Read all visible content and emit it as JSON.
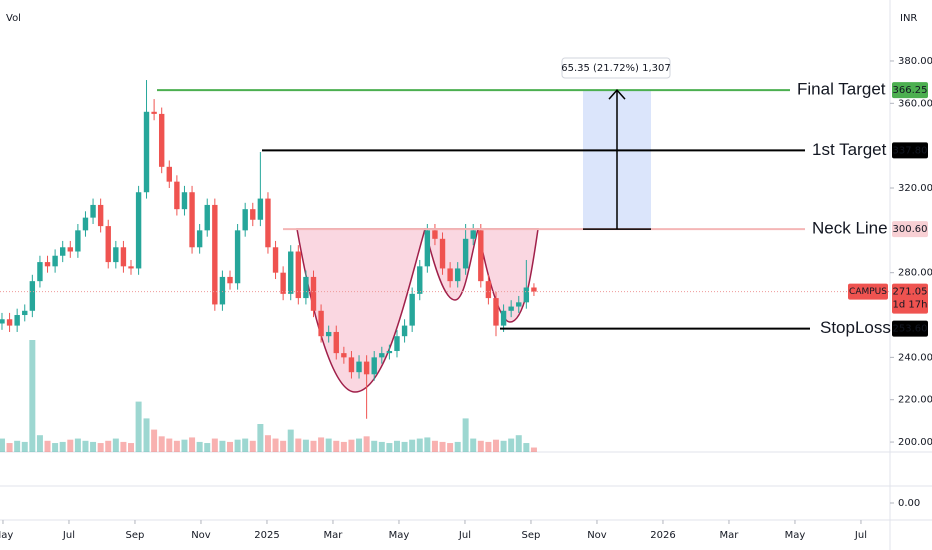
{
  "header": {
    "left": "Vol",
    "right": "INR"
  },
  "chart_data": {
    "type": "candlestick",
    "x": [
      3.97,
      4.2,
      4.43,
      4.66,
      4.89,
      5.12,
      5.35,
      5.58,
      5.81,
      6.04,
      6.27,
      6.5,
      6.73,
      6.96,
      7.19,
      7.42,
      7.65,
      7.88,
      8.11,
      8.35,
      8.58,
      8.81,
      9.04,
      9.27,
      9.5,
      9.73,
      9.96,
      10.19,
      10.42,
      10.65,
      10.88,
      11.11,
      11.34,
      11.57,
      11.8,
      12.03,
      12.26,
      12.49,
      12.72,
      12.95,
      13.18,
      13.41,
      13.64,
      13.87,
      14.1,
      14.33,
      14.56,
      14.79,
      15.02,
      15.25,
      15.48,
      15.71,
      15.94,
      16.17,
      16.4,
      16.63,
      16.86,
      17.09,
      17.32,
      17.55,
      17.78,
      18.02,
      18.25,
      18.48,
      18.71,
      18.94,
      19.17,
      19.4,
      19.63,
      19.86,
      20.09
    ],
    "open": [
      256,
      258,
      255,
      260,
      262,
      276,
      285,
      283,
      288,
      292,
      290,
      300,
      306,
      312,
      302,
      285,
      292,
      283,
      282,
      318,
      356,
      355,
      330,
      323,
      310,
      318,
      292,
      300,
      312,
      265,
      278,
      275,
      300,
      310,
      305,
      315,
      292,
      280,
      270,
      290,
      268,
      278,
      262,
      250,
      252,
      242,
      240,
      233,
      238,
      232,
      240,
      242,
      243,
      250,
      255,
      270,
      283,
      300,
      296,
      282,
      276,
      282,
      296,
      300,
      276,
      268,
      255,
      262,
      264,
      266,
      273
    ],
    "high": [
      261,
      261,
      263,
      265,
      279,
      288,
      288,
      291,
      295,
      295,
      303,
      309,
      315,
      315,
      305,
      295,
      295,
      286,
      321,
      371,
      362,
      358,
      333,
      326,
      321,
      321,
      303,
      315,
      315,
      281,
      281,
      303,
      313,
      313,
      337,
      318,
      295,
      283,
      293,
      293,
      281,
      281,
      265,
      255,
      255,
      245,
      243,
      241,
      241,
      243,
      245,
      246,
      253,
      258,
      273,
      286,
      303,
      303,
      299,
      285,
      285,
      303,
      303,
      303,
      279,
      271,
      265,
      267,
      269,
      286,
      275
    ],
    "low": [
      253,
      252,
      252,
      257,
      259,
      273,
      280,
      280,
      285,
      287,
      287,
      297,
      303,
      299,
      282,
      282,
      280,
      279,
      279,
      315,
      352,
      327,
      320,
      307,
      307,
      289,
      289,
      297,
      262,
      262,
      272,
      272,
      297,
      302,
      302,
      289,
      277,
      267,
      267,
      265,
      265,
      259,
      247,
      247,
      239,
      237,
      230,
      230,
      211,
      229,
      237,
      239,
      240,
      247,
      252,
      267,
      280,
      293,
      279,
      273,
      273,
      279,
      293,
      273,
      265,
      250,
      252,
      259,
      261,
      263,
      269
    ],
    "close": [
      258,
      255,
      260,
      262,
      276,
      285,
      283,
      288,
      292,
      290,
      300,
      306,
      312,
      302,
      285,
      292,
      283,
      282,
      318,
      356,
      355,
      330,
      323,
      310,
      318,
      292,
      300,
      312,
      265,
      278,
      275,
      300,
      310,
      305,
      315,
      292,
      280,
      270,
      290,
      268,
      278,
      262,
      250,
      252,
      242,
      240,
      233,
      238,
      232,
      240,
      242,
      243,
      250,
      255,
      270,
      283,
      300,
      296,
      282,
      276,
      282,
      296,
      300,
      276,
      268,
      255,
      262,
      264,
      266,
      273,
      271.05
    ],
    "volume": [
      12,
      8,
      10,
      9,
      100,
      15,
      10,
      8,
      9,
      11,
      12,
      10,
      9,
      8,
      10,
      12,
      9,
      8,
      45,
      30,
      20,
      14,
      12,
      10,
      11,
      13,
      9,
      8,
      12,
      10,
      9,
      11,
      12,
      10,
      25,
      15,
      12,
      10,
      20,
      12,
      11,
      10,
      13,
      12,
      10,
      9,
      11,
      12,
      14,
      10,
      9,
      8,
      10,
      9,
      11,
      12,
      13,
      10,
      9,
      8,
      9,
      30,
      12,
      10,
      9,
      11,
      10,
      12,
      15,
      8,
      4
    ],
    "volume_lim": [
      0,
      100
    ],
    "up_color": "#26a69a",
    "down_color": "#ef5350",
    "xlim": [
      3.91,
      30.88
    ],
    "xticks": [
      {
        "value": 4,
        "label": "May"
      },
      {
        "value": 6,
        "label": "Jul"
      },
      {
        "value": 8,
        "label": "Sep"
      },
      {
        "value": 10,
        "label": "Nov"
      },
      {
        "value": 12,
        "label": "2025"
      },
      {
        "value": 14,
        "label": "Mar"
      },
      {
        "value": 16,
        "label": "May"
      },
      {
        "value": 18,
        "label": "Jul"
      },
      {
        "value": 20,
        "label": "Sep"
      },
      {
        "value": 22,
        "label": "Nov"
      },
      {
        "value": 24,
        "label": "2026"
      },
      {
        "value": 26,
        "label": "Mar"
      },
      {
        "value": 28,
        "label": "May"
      },
      {
        "value": 30,
        "label": "Jul"
      }
    ],
    "ylim": [
      195.3,
      408.8
    ],
    "yticks": [
      {
        "value": 380,
        "label": "380.00"
      },
      {
        "value": 360,
        "label": "360.00"
      },
      {
        "value": 320,
        "label": "320.00"
      },
      {
        "value": 280,
        "label": "280.00"
      },
      {
        "value": 240,
        "label": "240.00"
      },
      {
        "value": 220,
        "label": "220.00"
      },
      {
        "value": 200,
        "label": "200.00"
      }
    ],
    "symbol": "CAMPUS",
    "countdown": "1d 17h",
    "levels": [
      {
        "name": "Final Target",
        "value": 366.25,
        "line_color": "#4caf50",
        "text_color": "#f59b00",
        "tag_color": "#4caf50",
        "tag_text_color": "#ffffff"
      },
      {
        "name": "1st Target",
        "value": 337.8,
        "value_label": "337.80",
        "line_color": "#000000",
        "text_color": "#000000",
        "tag_color": "#000000",
        "tag_text_color": "#ffffff"
      },
      {
        "name": "Neck Line",
        "value": 300.6,
        "value_label": "300.60",
        "line_color": "#f4b6b6",
        "text_color": "#000000",
        "tag_color": "#f8d0d4",
        "tag_text_color": "#000000"
      },
      {
        "name": "StopLoss",
        "value": 253.6,
        "value_label": "253.60",
        "line_color": "#000000",
        "text_color": "#e53935",
        "tag_color": "#000000",
        "tag_text_color": "#ffffff"
      }
    ],
    "measure": {
      "label": "65.35 (21.72%) 1,307",
      "color": "#dbe5fb"
    },
    "lower_pane": {
      "ylim": [
        -1,
        1
      ],
      "yticks": [
        {
          "value": 0,
          "label": "0.00"
        }
      ]
    }
  }
}
